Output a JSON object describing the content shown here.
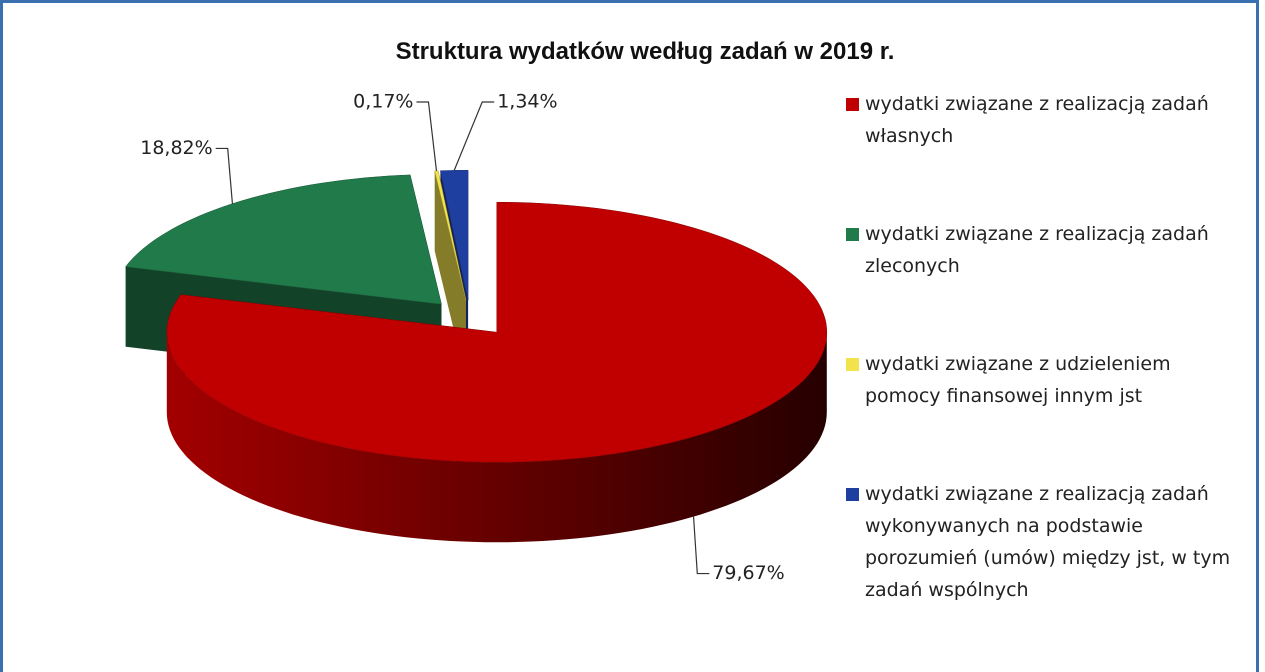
{
  "chart_data": {
    "type": "pie",
    "title": "Struktura wydatków według zadań w 2019 r.",
    "categories": [
      "wydatki związane z realizacją zadań własnych",
      "wydatki związane z realizacją zadań zleconych",
      "wydatki związane z udzieleniem pomocy finansowej innym jst",
      "wydatki związane z realizacją zadań wykonywanych na podstawie porozumień (umów) między jst, w tym zadań wspólnych"
    ],
    "values": [
      79.67,
      18.82,
      0.17,
      1.34
    ],
    "value_labels": [
      "79,67%",
      "18,82%",
      "0,17%",
      "1,34%"
    ],
    "colors": [
      "#c00000",
      "#217a4a",
      "#f2e24b",
      "#1f3fa0"
    ],
    "legend": "right"
  }
}
